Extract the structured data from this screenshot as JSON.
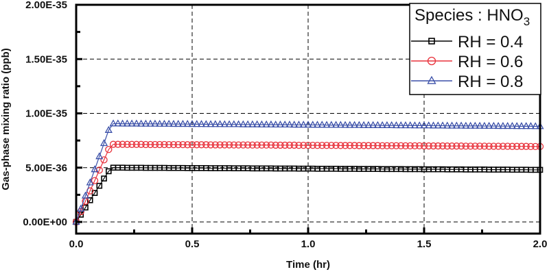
{
  "chart_data": {
    "type": "line",
    "title": "",
    "xlabel": "Time (hr)",
    "ylabel": "Gas-phase mixing ratio (ppb)",
    "xlim": [
      0.0,
      2.0
    ],
    "ylim": [
      0.0,
      2e-35
    ],
    "xticks": [
      0.0,
      0.5,
      1.0,
      1.5,
      2.0
    ],
    "xtick_labels": [
      "0.0",
      "0.5",
      "1.0",
      "1.5",
      "2.0"
    ],
    "yticks": [
      0.0,
      5e-36,
      1e-35,
      1.5e-35,
      2e-35
    ],
    "ytick_labels": [
      "0.00E+00",
      "5.00E-36",
      "1.00E-35",
      "1.50E-35",
      "2.00E-35"
    ],
    "grid": true,
    "legend_position": "upper right",
    "legend_title": "Species : HNO",
    "legend_title_subscript": "3",
    "value_unit_note": "series values are in units of 1E-36 ppb",
    "y_scale": 1e-36,
    "x": [
      0.0,
      0.02,
      0.04,
      0.06,
      0.08,
      0.1,
      0.12,
      0.14,
      0.16,
      0.18,
      0.2,
      0.22,
      0.24,
      0.26,
      0.28,
      0.3,
      0.32,
      0.34,
      0.36,
      0.38,
      0.4,
      0.42,
      0.44,
      0.46,
      0.48,
      0.5,
      0.52,
      0.54,
      0.56,
      0.58,
      0.6,
      0.62,
      0.64,
      0.66,
      0.68,
      0.7,
      0.72,
      0.74,
      0.76,
      0.78,
      0.8,
      0.82,
      0.84,
      0.86,
      0.88,
      0.9,
      0.92,
      0.94,
      0.96,
      0.98,
      1.0,
      1.02,
      1.04,
      1.06,
      1.08,
      1.1,
      1.12,
      1.14,
      1.16,
      1.18,
      1.2,
      1.22,
      1.24,
      1.26,
      1.28,
      1.3,
      1.32,
      1.34,
      1.36,
      1.38,
      1.4,
      1.42,
      1.44,
      1.46,
      1.48,
      1.5,
      1.52,
      1.54,
      1.56,
      1.58,
      1.6,
      1.62,
      1.64,
      1.66,
      1.68,
      1.7,
      1.72,
      1.74,
      1.76,
      1.78,
      1.8,
      1.82,
      1.84,
      1.86,
      1.88,
      1.9,
      1.92,
      1.94,
      1.96,
      1.98,
      2.0
    ],
    "series": [
      {
        "name": "RH = 0.4",
        "color": "#000000",
        "marker": "square",
        "values": [
          0.0,
          0.67,
          1.33,
          2.0,
          2.67,
          3.33,
          4.0,
          4.67,
          5.0,
          5.0,
          5.0,
          4.99,
          4.99,
          4.99,
          4.99,
          4.98,
          4.98,
          4.98,
          4.98,
          4.98,
          4.97,
          4.97,
          4.97,
          4.97,
          4.96,
          4.96,
          4.96,
          4.96,
          4.96,
          4.95,
          4.95,
          4.95,
          4.95,
          4.95,
          4.94,
          4.94,
          4.94,
          4.94,
          4.93,
          4.93,
          4.93,
          4.93,
          4.93,
          4.92,
          4.92,
          4.92,
          4.92,
          4.92,
          4.91,
          4.91,
          4.91,
          4.91,
          4.9,
          4.9,
          4.9,
          4.9,
          4.9,
          4.89,
          4.89,
          4.89,
          4.89,
          4.88,
          4.88,
          4.88,
          4.88,
          4.88,
          4.87,
          4.87,
          4.87,
          4.87,
          4.87,
          4.86,
          4.86,
          4.86,
          4.86,
          4.85,
          4.85,
          4.85,
          4.85,
          4.85,
          4.84,
          4.84,
          4.84,
          4.84,
          4.83,
          4.83,
          4.83,
          4.83,
          4.83,
          4.82,
          4.82,
          4.82,
          4.82,
          4.82,
          4.81,
          4.81,
          4.81,
          4.81,
          4.8,
          4.8,
          4.8
        ]
      },
      {
        "name": "RH = 0.6",
        "color": "#e8303a",
        "marker": "circle",
        "values": [
          0.0,
          0.95,
          1.91,
          2.86,
          3.81,
          4.77,
          5.72,
          6.67,
          7.15,
          7.15,
          7.15,
          7.14,
          7.14,
          7.14,
          7.14,
          7.13,
          7.13,
          7.13,
          7.13,
          7.13,
          7.12,
          7.12,
          7.12,
          7.12,
          7.11,
          7.11,
          7.11,
          7.11,
          7.11,
          7.1,
          7.1,
          7.1,
          7.1,
          7.1,
          7.09,
          7.09,
          7.09,
          7.09,
          7.08,
          7.08,
          7.08,
          7.08,
          7.08,
          7.07,
          7.07,
          7.07,
          7.07,
          7.07,
          7.06,
          7.06,
          7.06,
          7.06,
          7.05,
          7.05,
          7.05,
          7.05,
          7.05,
          7.04,
          7.04,
          7.04,
          7.04,
          7.03,
          7.03,
          7.03,
          7.03,
          7.03,
          7.02,
          7.02,
          7.02,
          7.02,
          7.02,
          7.01,
          7.01,
          7.01,
          7.01,
          7.0,
          7.0,
          7.0,
          7.0,
          7.0,
          6.99,
          6.99,
          6.99,
          6.99,
          6.98,
          6.98,
          6.98,
          6.98,
          6.98,
          6.97,
          6.97,
          6.97,
          6.97,
          6.97,
          6.96,
          6.96,
          6.96,
          6.96,
          6.95,
          6.95,
          6.95
        ]
      },
      {
        "name": "RH = 0.8",
        "color": "#3a4fa8",
        "marker": "triangle",
        "values": [
          0.0,
          1.21,
          2.41,
          3.62,
          4.83,
          6.03,
          7.24,
          8.45,
          9.05,
          9.05,
          9.04,
          9.04,
          9.04,
          9.04,
          9.03,
          9.03,
          9.03,
          9.03,
          9.02,
          9.02,
          9.02,
          9.01,
          9.01,
          9.01,
          9.01,
          9.0,
          9.0,
          9.0,
          8.99,
          8.99,
          8.99,
          8.99,
          8.98,
          8.98,
          8.98,
          8.98,
          8.97,
          8.97,
          8.97,
          8.97,
          8.96,
          8.96,
          8.96,
          8.95,
          8.95,
          8.95,
          8.95,
          8.94,
          8.94,
          8.94,
          8.94,
          8.93,
          8.93,
          8.93,
          8.92,
          8.92,
          8.92,
          8.92,
          8.91,
          8.91,
          8.91,
          8.91,
          8.9,
          8.9,
          8.9,
          8.9,
          8.89,
          8.89,
          8.89,
          8.88,
          8.88,
          8.88,
          8.88,
          8.87,
          8.87,
          8.87,
          8.87,
          8.86,
          8.86,
          8.86,
          8.85,
          8.85,
          8.85,
          8.85,
          8.84,
          8.84,
          8.84,
          8.84,
          8.83,
          8.83,
          8.83,
          8.82,
          8.82,
          8.82,
          8.82,
          8.81,
          8.81,
          8.81,
          8.81,
          8.8,
          8.8
        ]
      }
    ]
  }
}
